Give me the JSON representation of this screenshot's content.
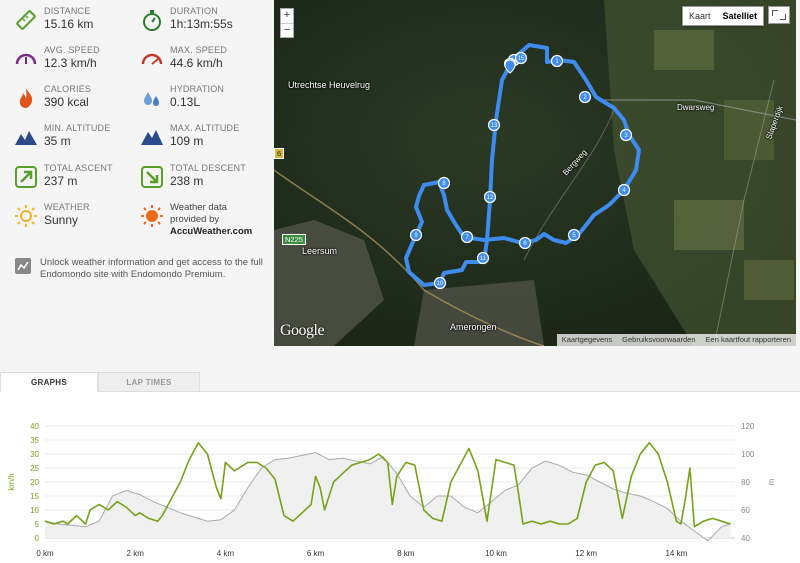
{
  "stats": {
    "distance": {
      "label": "DISTANCE",
      "value": "15.16 km"
    },
    "duration": {
      "label": "DURATION",
      "value": "1h:13m:55s"
    },
    "avg_speed": {
      "label": "AVG. SPEED",
      "value": "12.3 km/h"
    },
    "max_speed": {
      "label": "MAX. SPEED",
      "value": "44.6 km/h"
    },
    "calories": {
      "label": "CALORIES",
      "value": "390 kcal"
    },
    "hydration": {
      "label": "HYDRATION",
      "value": "0.13L"
    },
    "min_altitude": {
      "label": "MIN. ALTITUDE",
      "value": "35 m"
    },
    "max_altitude": {
      "label": "MAX. ALTITUDE",
      "value": "109 m"
    },
    "total_ascent": {
      "label": "TOTAL ASCENT",
      "value": "237 m"
    },
    "total_descent": {
      "label": "TOTAL DESCENT",
      "value": "238 m"
    },
    "weather": {
      "label": "WEATHER",
      "value": "Sunny"
    },
    "weather_data": {
      "line1": "Weather data",
      "line2": "provided by",
      "provider": "AccuWeather.com"
    }
  },
  "unlock_text": "Unlock weather information and get access to the full Endomondo site with Endomondo Premium.",
  "map": {
    "zoom_in": "+",
    "zoom_out": "−",
    "type_map": "Kaart",
    "type_satellite": "Satelliet",
    "google_logo": "Google",
    "footer": [
      "Kaartgegevens",
      "Gebruiksvoorwaarden",
      "Een kaartfout rapporteren"
    ],
    "labels": {
      "heuvelrug": "Utrechtse Heuvelrug",
      "leersum": "Leersum",
      "amerongen": "Amerongen",
      "bergweg": "Bergweg",
      "dwarsweg": "Dwarsweg",
      "slaperdijk": "Slaperdijk",
      "n225": "N225",
      "route6": "6"
    },
    "markers": [
      "1",
      "2",
      "3",
      "4",
      "5",
      "6",
      "7",
      "8",
      "9",
      "10",
      "11",
      "12",
      "13",
      "14",
      "15",
      "16"
    ]
  },
  "tabs": {
    "graphs": "GRAPHS",
    "lap_times": "LAP TIMES"
  },
  "chart_data": {
    "type": "line",
    "xlabel": "",
    "x_ticks": [
      "0 km",
      "2 km",
      "4 km",
      "6 km",
      "8 km",
      "10 km",
      "12 km",
      "14 km"
    ],
    "x_range": [
      0,
      15.3
    ],
    "y_left": {
      "label": "km/h",
      "ticks": [
        0,
        5,
        10,
        15,
        20,
        25,
        30,
        35,
        40
      ],
      "range": [
        0,
        40
      ]
    },
    "y_right": {
      "label": "m",
      "ticks": [
        40,
        60,
        80,
        100,
        120
      ],
      "range": [
        40,
        120
      ]
    },
    "colors": {
      "speed": "#7aa01a",
      "altitude": "#aaaaaa",
      "altitude_fill": "#f0f0f0"
    },
    "series": [
      {
        "axis": "left",
        "x": [
          0,
          0.2,
          0.4,
          0.5,
          0.7,
          0.9,
          1.0,
          1.2,
          1.4,
          1.6,
          1.8,
          2.0,
          2.1,
          2.3,
          2.5,
          2.6,
          2.8,
          3.0,
          3.2,
          3.4,
          3.6,
          3.8,
          3.9,
          4.0,
          4.2,
          4.3,
          4.5,
          4.7,
          4.9,
          5.1,
          5.3,
          5.5,
          5.7,
          5.9,
          6.0,
          6.1,
          6.2,
          6.4,
          6.6,
          6.8,
          7.0,
          7.2,
          7.4,
          7.6,
          7.7,
          7.8,
          8.0,
          8.2,
          8.4,
          8.6,
          8.8,
          9.0,
          9.2,
          9.4,
          9.6,
          9.8,
          10.0,
          10.2,
          10.4,
          10.5,
          10.6,
          10.8,
          11.0,
          11.2,
          11.4,
          11.6,
          11.8,
          12.0,
          12.2,
          12.4,
          12.6,
          12.8,
          13.0,
          13.2,
          13.4,
          13.6,
          13.8,
          14.0,
          14.1,
          14.2,
          14.3,
          14.4,
          14.6,
          14.8,
          15.0,
          15.2
        ],
        "y": [
          6,
          5,
          6,
          5,
          8,
          5,
          10,
          12,
          10,
          13,
          11,
          8,
          9,
          7,
          6,
          8,
          14,
          20,
          28,
          34,
          30,
          18,
          14,
          27,
          24,
          25,
          27,
          27,
          25,
          21,
          8,
          6,
          9,
          12,
          22,
          18,
          10,
          20,
          23,
          26,
          27,
          28,
          30,
          27,
          12,
          22,
          27,
          26,
          10,
          7,
          6,
          20,
          26,
          32,
          24,
          6,
          28,
          27,
          26,
          16,
          5,
          6,
          5,
          6,
          5,
          5,
          7,
          20,
          26,
          27,
          24,
          7,
          22,
          30,
          34,
          30,
          20,
          6,
          5,
          14,
          25,
          4,
          6,
          7,
          6,
          5
        ]
      },
      {
        "axis": "right",
        "x": [
          0,
          0.3,
          0.6,
          0.9,
          1.2,
          1.5,
          1.8,
          2.1,
          2.4,
          2.7,
          3.0,
          3.3,
          3.6,
          3.9,
          4.2,
          4.5,
          4.8,
          5.1,
          5.4,
          5.7,
          6.0,
          6.3,
          6.6,
          6.9,
          7.2,
          7.5,
          7.8,
          8.1,
          8.4,
          8.7,
          9.0,
          9.3,
          9.6,
          9.9,
          10.2,
          10.5,
          10.8,
          11.1,
          11.4,
          11.7,
          12.0,
          12.3,
          12.6,
          12.9,
          13.2,
          13.5,
          13.8,
          14.1,
          14.4,
          14.7,
          15.0,
          15.2
        ],
        "y": [
          52,
          50,
          49,
          48,
          52,
          70,
          74,
          71,
          66,
          62,
          58,
          55,
          52,
          53,
          60,
          76,
          90,
          96,
          97,
          99,
          101,
          96,
          97,
          95,
          93,
          98,
          86,
          70,
          62,
          70,
          70,
          62,
          58,
          66,
          74,
          78,
          90,
          95,
          92,
          87,
          85,
          80,
          75,
          72,
          70,
          66,
          61,
          52,
          45,
          38,
          48,
          50
        ]
      }
    ]
  }
}
